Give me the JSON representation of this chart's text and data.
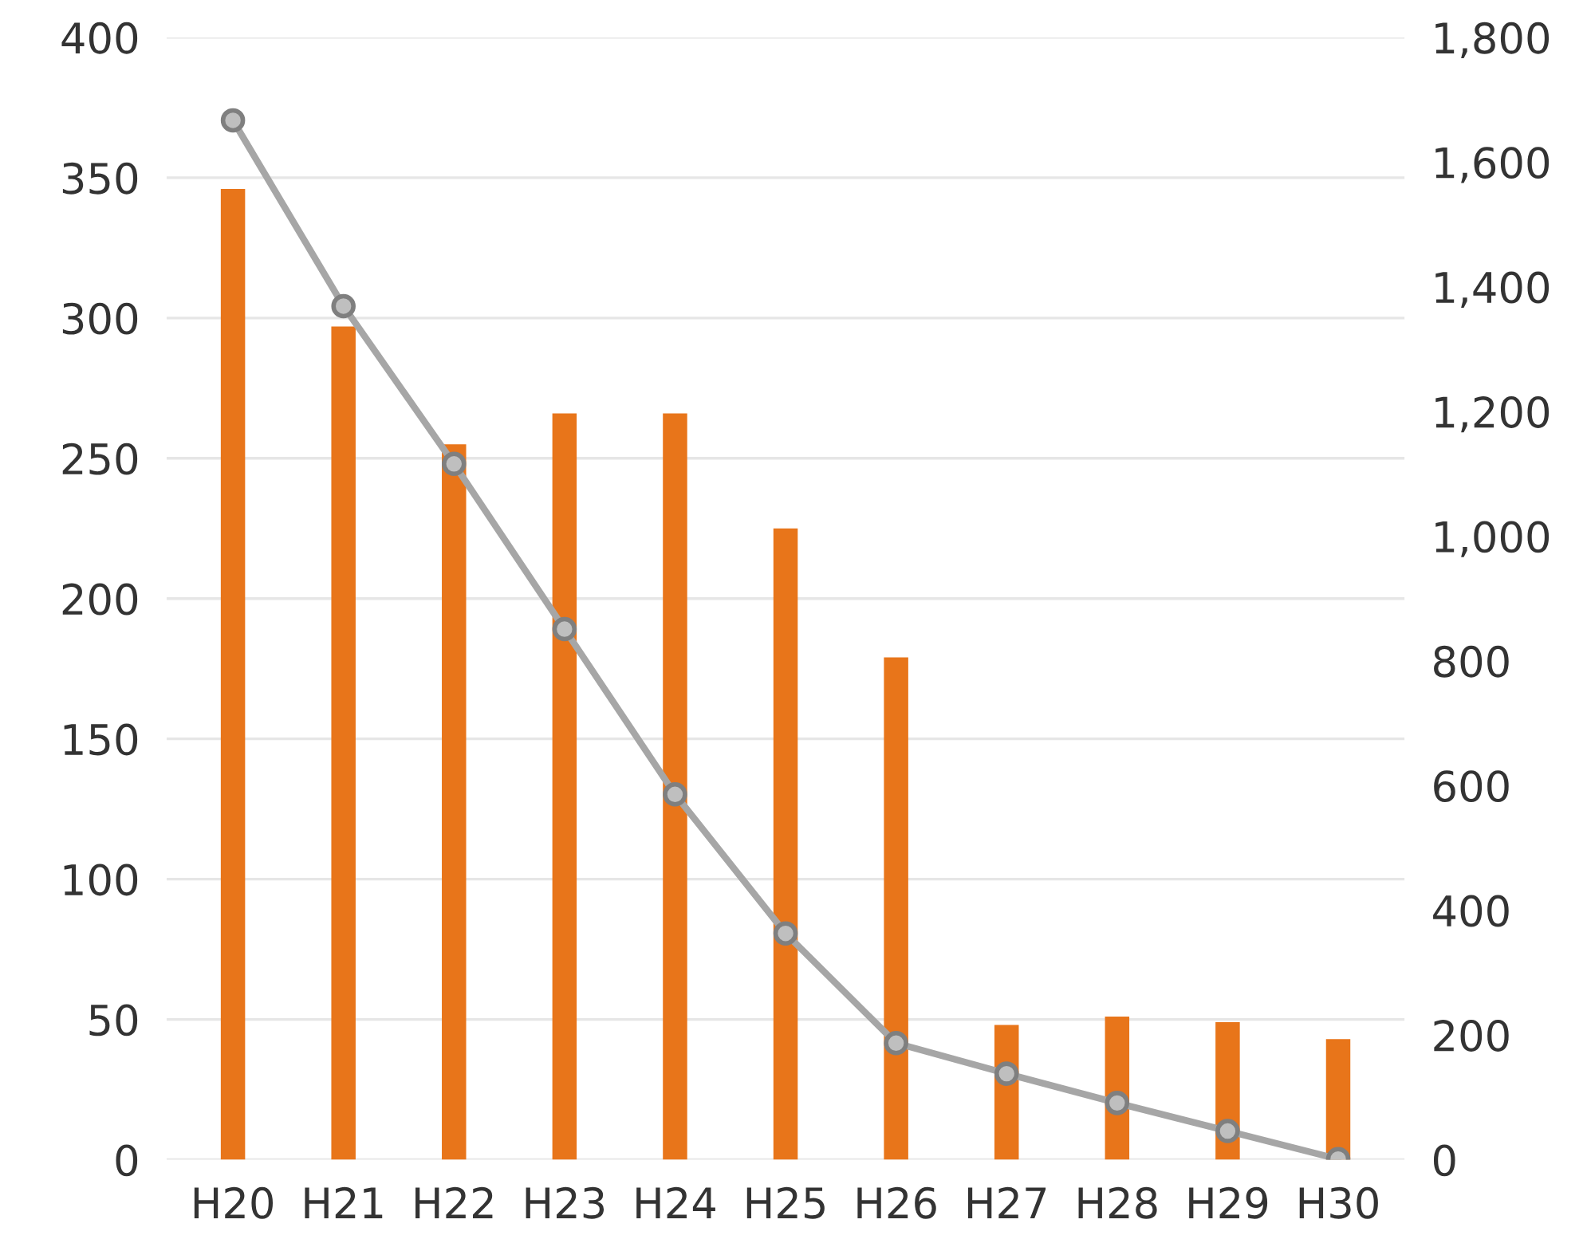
{
  "chart_data": {
    "type": "bar",
    "categories": [
      "H20",
      "H21",
      "H22",
      "H23",
      "H24",
      "H25",
      "H26",
      "H27",
      "H28",
      "H29",
      "H30"
    ],
    "series": [
      {
        "color": "#e8751a",
        "values": [
          346,
          297,
          255,
          266,
          266,
          225,
          179,
          48,
          51,
          49,
          43
        ]
      },
      {
        "type": "line",
        "axis": "y2",
        "color": "#a6a6a6",
        "marker": "circle",
        "values": [
          1667,
          1369,
          1116,
          851,
          586,
          363,
          187,
          138,
          91,
          46,
          1
        ]
      }
    ],
    "ylim": [
      0,
      400
    ],
    "yticks": [
      0,
      50,
      100,
      150,
      200,
      250,
      300,
      350,
      400
    ],
    "y2lim": [
      0,
      1800
    ],
    "y2ticks": [
      {
        "value": 0,
        "label": "0"
      },
      {
        "value": 200,
        "label": "200"
      },
      {
        "value": 400,
        "label": "400"
      },
      {
        "value": 600,
        "label": "600"
      },
      {
        "value": 800,
        "label": "800"
      },
      {
        "value": 1000,
        "label": "1,000"
      },
      {
        "value": 1200,
        "label": "1,200"
      },
      {
        "value": 1400,
        "label": "1,400"
      },
      {
        "value": 1600,
        "label": "1,600"
      },
      {
        "value": 1800,
        "label": "1,800"
      }
    ],
    "grid": "y"
  }
}
